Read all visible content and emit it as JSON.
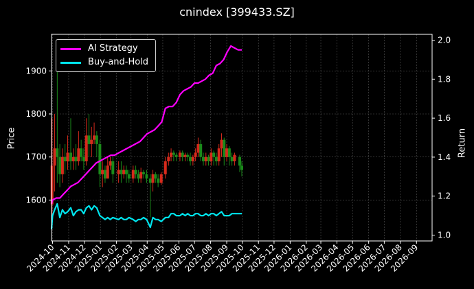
{
  "page": {
    "title": "cnindex [399433.SZ]"
  },
  "legend": {
    "ai_label": "AI Strategy",
    "bh_label": "Buy-and-Hold"
  },
  "colors": {
    "ai": "#ff00ff",
    "bh": "#00e5ee",
    "up": "#d62a1c",
    "down": "#1a8a1a",
    "grid": "#555555",
    "axis": "#ffffff"
  },
  "chart_data": {
    "type": "line",
    "title": "cnindex [399433.SZ]",
    "ylabel": "Price",
    "ylabel_right": "Return",
    "x_ticks": [
      "2024-10",
      "2024-11",
      "2024-12",
      "2025-01",
      "2025-02",
      "2025-03",
      "2025-04",
      "2025-05",
      "2025-06",
      "2025-07",
      "2025-08",
      "2025-09",
      "2025-10",
      "2025-11",
      "2025-12",
      "2026-01",
      "2026-02",
      "2026-03",
      "2026-04",
      "2026-05",
      "2026-06",
      "2026-07",
      "2026-08",
      "2026-09"
    ],
    "xlim": [
      "2024-09-29",
      "2026-10-01"
    ],
    "ylim": [
      1505,
      1985
    ],
    "y_ticks": [
      1600,
      1700,
      1800,
      1900
    ],
    "ylim_right": [
      0.97,
      2.03
    ],
    "y_ticks_right": [
      1.0,
      1.2,
      1.4,
      1.6,
      1.8,
      2.0
    ],
    "grid": true,
    "legend_position": "top-left",
    "candles": [
      [
        "2024-09-30",
        1590,
        1680,
        1560,
        1790
      ],
      [
        "2024-10-05",
        1680,
        1720,
        1620,
        1800
      ],
      [
        "2024-10-10",
        1720,
        1700,
        1640,
        1950
      ],
      [
        "2024-10-15",
        1700,
        1660,
        1630,
        1730
      ],
      [
        "2024-10-20",
        1660,
        1700,
        1640,
        1720
      ],
      [
        "2024-10-25",
        1700,
        1690,
        1660,
        1730
      ],
      [
        "2024-10-30",
        1690,
        1710,
        1670,
        1750
      ],
      [
        "2024-11-05",
        1710,
        1690,
        1670,
        1790
      ],
      [
        "2024-11-10",
        1690,
        1700,
        1670,
        1720
      ],
      [
        "2024-11-15",
        1700,
        1690,
        1670,
        1730
      ],
      [
        "2024-11-20",
        1690,
        1720,
        1680,
        1760
      ],
      [
        "2024-11-25",
        1720,
        1700,
        1690,
        1740
      ],
      [
        "2024-11-30",
        1700,
        1690,
        1670,
        1720
      ],
      [
        "2024-12-05",
        1690,
        1750,
        1680,
        1790
      ],
      [
        "2024-12-10",
        1750,
        1730,
        1700,
        1800
      ],
      [
        "2024-12-15",
        1730,
        1740,
        1700,
        1770
      ],
      [
        "2024-12-20",
        1740,
        1750,
        1730,
        1780
      ],
      [
        "2024-12-25",
        1750,
        1730,
        1700,
        1760
      ],
      [
        "2024-12-31",
        1730,
        1660,
        1630,
        1740
      ],
      [
        "2025-01-05",
        1660,
        1670,
        1630,
        1690
      ],
      [
        "2025-01-10",
        1670,
        1650,
        1640,
        1680
      ],
      [
        "2025-01-15",
        1650,
        1680,
        1650,
        1700
      ],
      [
        "2025-01-20",
        1680,
        1690,
        1670,
        1700
      ],
      [
        "2025-01-25",
        1690,
        1660,
        1640,
        1700
      ],
      [
        "2025-02-05",
        1660,
        1670,
        1640,
        1690
      ],
      [
        "2025-02-10",
        1670,
        1660,
        1640,
        1690
      ],
      [
        "2025-02-15",
        1660,
        1670,
        1650,
        1680
      ],
      [
        "2025-02-20",
        1670,
        1660,
        1640,
        1680
      ],
      [
        "2025-02-25",
        1660,
        1650,
        1640,
        1670
      ],
      [
        "2025-03-05",
        1650,
        1670,
        1640,
        1680
      ],
      [
        "2025-03-10",
        1670,
        1660,
        1650,
        1680
      ],
      [
        "2025-03-15",
        1660,
        1650,
        1640,
        1670
      ],
      [
        "2025-03-20",
        1650,
        1665,
        1640,
        1675
      ],
      [
        "2025-03-25",
        1665,
        1660,
        1650,
        1670
      ],
      [
        "2025-03-31",
        1660,
        1650,
        1640,
        1670
      ],
      [
        "2025-04-07",
        1650,
        1640,
        1560,
        1660
      ],
      [
        "2025-04-12",
        1640,
        1660,
        1620,
        1670
      ],
      [
        "2025-04-17",
        1660,
        1650,
        1640,
        1665
      ],
      [
        "2025-04-22",
        1650,
        1640,
        1630,
        1660
      ],
      [
        "2025-04-28",
        1640,
        1660,
        1635,
        1665
      ],
      [
        "2025-05-06",
        1660,
        1690,
        1650,
        1700
      ],
      [
        "2025-05-12",
        1690,
        1700,
        1680,
        1710
      ],
      [
        "2025-05-17",
        1700,
        1710,
        1690,
        1720
      ],
      [
        "2025-05-22",
        1710,
        1705,
        1690,
        1715
      ],
      [
        "2025-05-27",
        1705,
        1700,
        1690,
        1710
      ],
      [
        "2025-06-03",
        1700,
        1710,
        1690,
        1715
      ],
      [
        "2025-06-08",
        1710,
        1700,
        1690,
        1715
      ],
      [
        "2025-06-13",
        1700,
        1705,
        1690,
        1710
      ],
      [
        "2025-06-18",
        1705,
        1700,
        1690,
        1710
      ],
      [
        "2025-06-23",
        1700,
        1690,
        1680,
        1710
      ],
      [
        "2025-06-28",
        1690,
        1700,
        1680,
        1705
      ],
      [
        "2025-07-03",
        1700,
        1710,
        1690,
        1720
      ],
      [
        "2025-07-08",
        1710,
        1730,
        1700,
        1745
      ],
      [
        "2025-07-13",
        1730,
        1700,
        1690,
        1740
      ],
      [
        "2025-07-18",
        1700,
        1690,
        1680,
        1710
      ],
      [
        "2025-07-23",
        1690,
        1700,
        1680,
        1710
      ],
      [
        "2025-07-28",
        1700,
        1690,
        1680,
        1705
      ],
      [
        "2025-08-02",
        1690,
        1710,
        1680,
        1720
      ],
      [
        "2025-08-07",
        1710,
        1700,
        1680,
        1715
      ],
      [
        "2025-08-12",
        1700,
        1690,
        1680,
        1710
      ],
      [
        "2025-08-17",
        1690,
        1720,
        1680,
        1730
      ],
      [
        "2025-08-22",
        1720,
        1740,
        1700,
        1755
      ],
      [
        "2025-08-27",
        1740,
        1700,
        1680,
        1745
      ],
      [
        "2025-09-01",
        1700,
        1720,
        1690,
        1730
      ],
      [
        "2025-09-06",
        1720,
        1700,
        1680,
        1725
      ],
      [
        "2025-09-11",
        1700,
        1690,
        1680,
        1710
      ],
      [
        "2025-09-16",
        1690,
        1705,
        1680,
        1710
      ],
      [
        "2025-09-26",
        1700,
        1680,
        1665,
        1705
      ],
      [
        "2025-09-30",
        1680,
        1670,
        1655,
        1690
      ]
    ],
    "series": [
      {
        "name": "AI Strategy",
        "axis": "right",
        "x": [
          "2024-09-29",
          "2024-10-01",
          "2024-10-08",
          "2024-10-15",
          "2024-10-22",
          "2024-10-29",
          "2024-11-05",
          "2024-11-12",
          "2024-11-19",
          "2024-11-26",
          "2024-12-03",
          "2024-12-10",
          "2024-12-17",
          "2024-12-24",
          "2024-12-31",
          "2025-01-07",
          "2025-01-14",
          "2025-01-21",
          "2025-01-28",
          "2025-02-04",
          "2025-02-11",
          "2025-02-18",
          "2025-02-25",
          "2025-03-04",
          "2025-03-11",
          "2025-03-18",
          "2025-03-25",
          "2025-04-01",
          "2025-04-08",
          "2025-04-15",
          "2025-04-22",
          "2025-04-29",
          "2025-05-06",
          "2025-05-13",
          "2025-05-20",
          "2025-05-27",
          "2025-06-03",
          "2025-06-10",
          "2025-06-17",
          "2025-06-24",
          "2025-07-01",
          "2025-07-08",
          "2025-07-15",
          "2025-07-22",
          "2025-07-29",
          "2025-08-05",
          "2025-08-12",
          "2025-08-19",
          "2025-08-26",
          "2025-09-02",
          "2025-09-09",
          "2025-09-16",
          "2025-09-23",
          "2025-09-30"
        ],
        "values": [
          1.16,
          1.18,
          1.19,
          1.19,
          1.21,
          1.23,
          1.25,
          1.26,
          1.27,
          1.29,
          1.31,
          1.33,
          1.35,
          1.37,
          1.38,
          1.39,
          1.4,
          1.41,
          1.41,
          1.42,
          1.43,
          1.44,
          1.45,
          1.46,
          1.47,
          1.48,
          1.5,
          1.52,
          1.53,
          1.54,
          1.56,
          1.58,
          1.65,
          1.66,
          1.66,
          1.68,
          1.72,
          1.74,
          1.75,
          1.76,
          1.78,
          1.78,
          1.79,
          1.8,
          1.82,
          1.83,
          1.87,
          1.88,
          1.9,
          1.94,
          1.97,
          1.96,
          1.95,
          1.95
        ]
      },
      {
        "name": "Buy-and-Hold",
        "axis": "right",
        "x": [
          "2024-09-29",
          "2024-10-01",
          "2024-10-05",
          "2024-10-10",
          "2024-10-15",
          "2024-10-20",
          "2024-10-25",
          "2024-10-30",
          "2024-11-05",
          "2024-11-10",
          "2024-11-15",
          "2024-11-20",
          "2024-11-25",
          "2024-11-30",
          "2024-12-05",
          "2024-12-10",
          "2024-12-15",
          "2024-12-20",
          "2024-12-25",
          "2024-12-31",
          "2025-01-05",
          "2025-01-10",
          "2025-01-15",
          "2025-01-20",
          "2025-01-25",
          "2025-02-05",
          "2025-02-10",
          "2025-02-15",
          "2025-02-20",
          "2025-02-25",
          "2025-03-05",
          "2025-03-10",
          "2025-03-15",
          "2025-03-20",
          "2025-03-25",
          "2025-03-31",
          "2025-04-07",
          "2025-04-12",
          "2025-04-17",
          "2025-04-22",
          "2025-04-28",
          "2025-05-06",
          "2025-05-12",
          "2025-05-17",
          "2025-05-22",
          "2025-05-27",
          "2025-06-03",
          "2025-06-08",
          "2025-06-13",
          "2025-06-18",
          "2025-06-23",
          "2025-06-28",
          "2025-07-03",
          "2025-07-08",
          "2025-07-13",
          "2025-07-18",
          "2025-07-23",
          "2025-07-28",
          "2025-08-02",
          "2025-08-07",
          "2025-08-12",
          "2025-08-17",
          "2025-08-22",
          "2025-08-27",
          "2025-09-01",
          "2025-09-06",
          "2025-09-11",
          "2025-09-16",
          "2025-09-26",
          "2025-09-30"
        ],
        "values": [
          1.03,
          1.1,
          1.13,
          1.16,
          1.09,
          1.13,
          1.11,
          1.12,
          1.14,
          1.1,
          1.12,
          1.13,
          1.13,
          1.11,
          1.14,
          1.15,
          1.13,
          1.15,
          1.14,
          1.1,
          1.09,
          1.08,
          1.09,
          1.08,
          1.09,
          1.08,
          1.09,
          1.08,
          1.08,
          1.09,
          1.08,
          1.07,
          1.08,
          1.08,
          1.09,
          1.08,
          1.04,
          1.09,
          1.08,
          1.08,
          1.07,
          1.09,
          1.09,
          1.11,
          1.11,
          1.1,
          1.1,
          1.11,
          1.1,
          1.11,
          1.1,
          1.1,
          1.11,
          1.11,
          1.1,
          1.1,
          1.11,
          1.1,
          1.11,
          1.11,
          1.1,
          1.11,
          1.12,
          1.1,
          1.1,
          1.1,
          1.11,
          1.11,
          1.11,
          1.11
        ]
      }
    ]
  }
}
